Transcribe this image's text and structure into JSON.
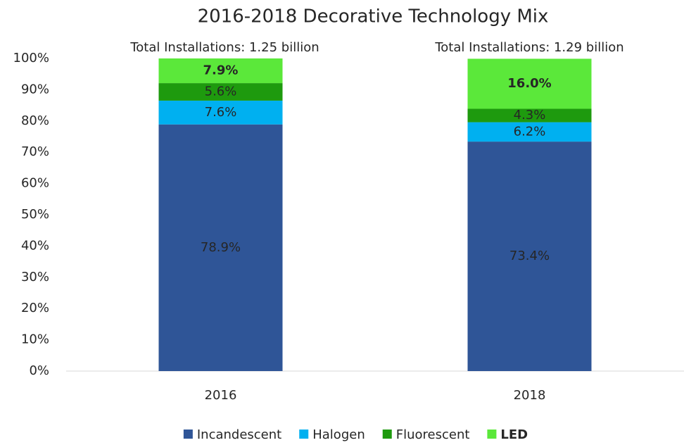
{
  "chart_data": {
    "type": "stacked_bar",
    "title": "2016-2018 Decorative Technology Mix",
    "categories": [
      "2016",
      "2018"
    ],
    "annotations": [
      "Total Installations: 1.25 billion",
      "Total Installations: 1.29 billion"
    ],
    "series": [
      {
        "name": "Incandescent",
        "color": "#2f5597",
        "label_color": "#ffffff",
        "values": [
          78.9,
          73.4
        ],
        "value_labels": [
          "78.9%",
          "73.4%"
        ]
      },
      {
        "name": "Halogen",
        "color": "#00b0f0",
        "label_color": "#404040",
        "values": [
          7.6,
          6.2
        ],
        "value_labels": [
          "7.6%",
          "6.2%"
        ]
      },
      {
        "name": "Fluorescent",
        "color": "#1e9a0e",
        "label_color": "#404040",
        "values": [
          5.6,
          4.3
        ],
        "value_labels": [
          "5.6%",
          "4.3%"
        ]
      },
      {
        "name": "LED",
        "color": "#5be83a",
        "label_color": "#262626",
        "bold": true,
        "values": [
          7.9,
          16.0
        ],
        "value_labels": [
          "7.9%",
          "16.0%"
        ]
      }
    ],
    "ylim": [
      0,
      100
    ],
    "yticks": [
      {
        "value": 0,
        "label": "0%"
      },
      {
        "value": 10,
        "label": "10%"
      },
      {
        "value": 20,
        "label": "20%"
      },
      {
        "value": 30,
        "label": "30%"
      },
      {
        "value": 40,
        "label": "40%"
      },
      {
        "value": 50,
        "label": "50%"
      },
      {
        "value": 60,
        "label": "60%"
      },
      {
        "value": 70,
        "label": "70%"
      },
      {
        "value": 80,
        "label": "80%"
      },
      {
        "value": 90,
        "label": "90%"
      },
      {
        "value": 100,
        "label": "100%"
      }
    ],
    "grid": false,
    "legend": "bottom"
  }
}
